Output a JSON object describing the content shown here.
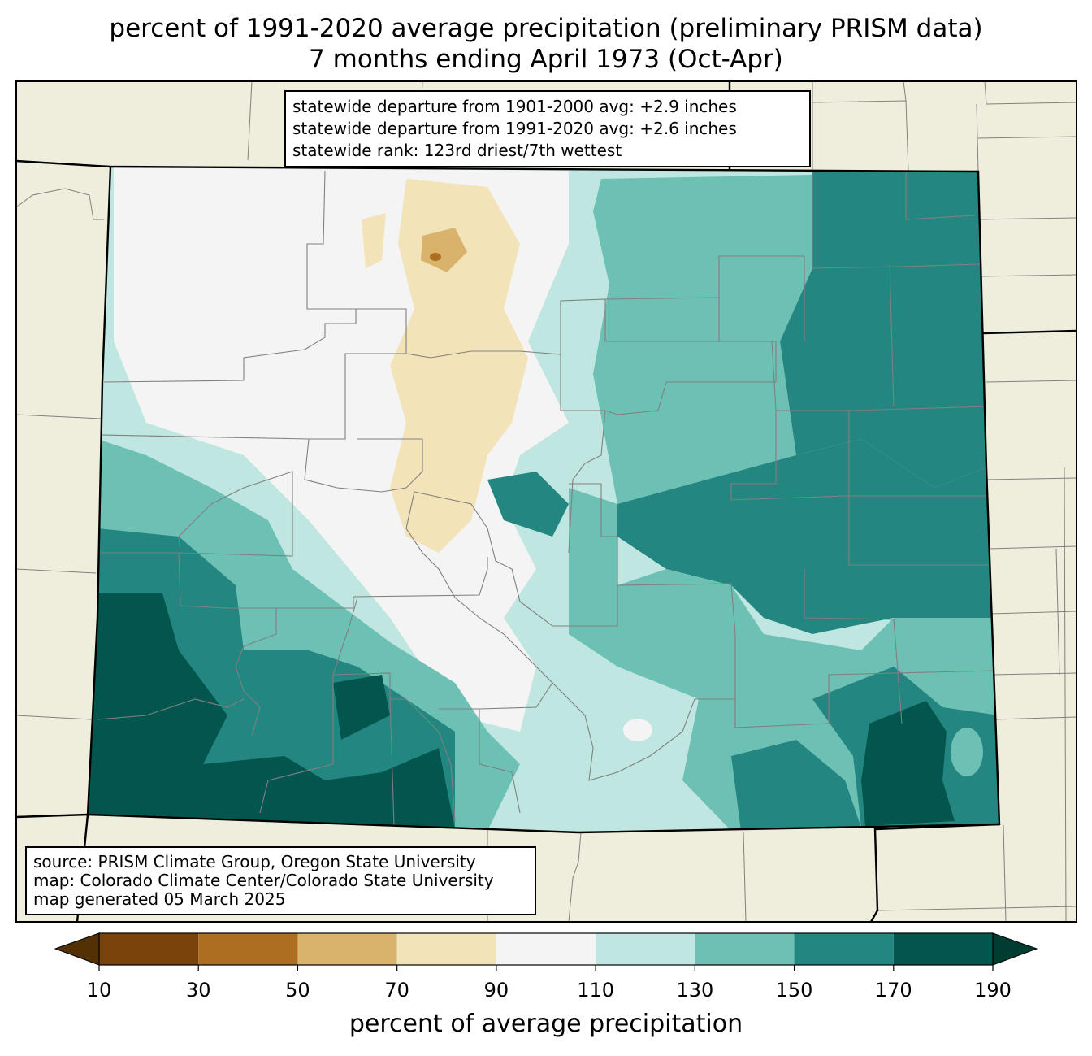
{
  "title": {
    "line1": "percent of 1991-2020 average precipitation (preliminary PRISM data)",
    "line2": "7 months ending April 1973 (Oct-Apr)"
  },
  "stats": {
    "line1": "statewide departure from 1901-2000 avg: +2.9 inches",
    "line2": "statewide departure from 1991-2020 avg: +2.6 inches",
    "line3": "statewide rank: 123rd driest/7th wettest"
  },
  "source": {
    "line1": "source: PRISM Climate Group, Oregon State University",
    "line2": "map: Colorado Climate Center/Colorado State University",
    "line3": "map generated 05 March 2025"
  },
  "colorbar": {
    "label": "percent of average precipitation",
    "ticks": [
      "10",
      "30",
      "50",
      "70",
      "90",
      "110",
      "130",
      "150",
      "170",
      "190"
    ],
    "under_color": "#543005",
    "over_color": "#003c30",
    "bins": [
      {
        "from": 10,
        "to": 30,
        "color": "#7a430b"
      },
      {
        "from": 30,
        "to": 50,
        "color": "#ad6e22"
      },
      {
        "from": 50,
        "to": 70,
        "color": "#d9b36c"
      },
      {
        "from": 70,
        "to": 90,
        "color": "#f3e3b8"
      },
      {
        "from": 90,
        "to": 110,
        "color": "#f3f4f3"
      },
      {
        "from": 110,
        "to": 130,
        "color": "#bfe6e1"
      },
      {
        "from": 130,
        "to": 150,
        "color": "#6dc0b4"
      },
      {
        "from": 150,
        "to": 170,
        "color": "#238680"
      },
      {
        "from": 170,
        "to": 190,
        "color": "#02564d"
      }
    ]
  },
  "colors": {
    "land_outside": "#efeedc",
    "county_lines": "#808080",
    "state_lines": "#000000"
  }
}
